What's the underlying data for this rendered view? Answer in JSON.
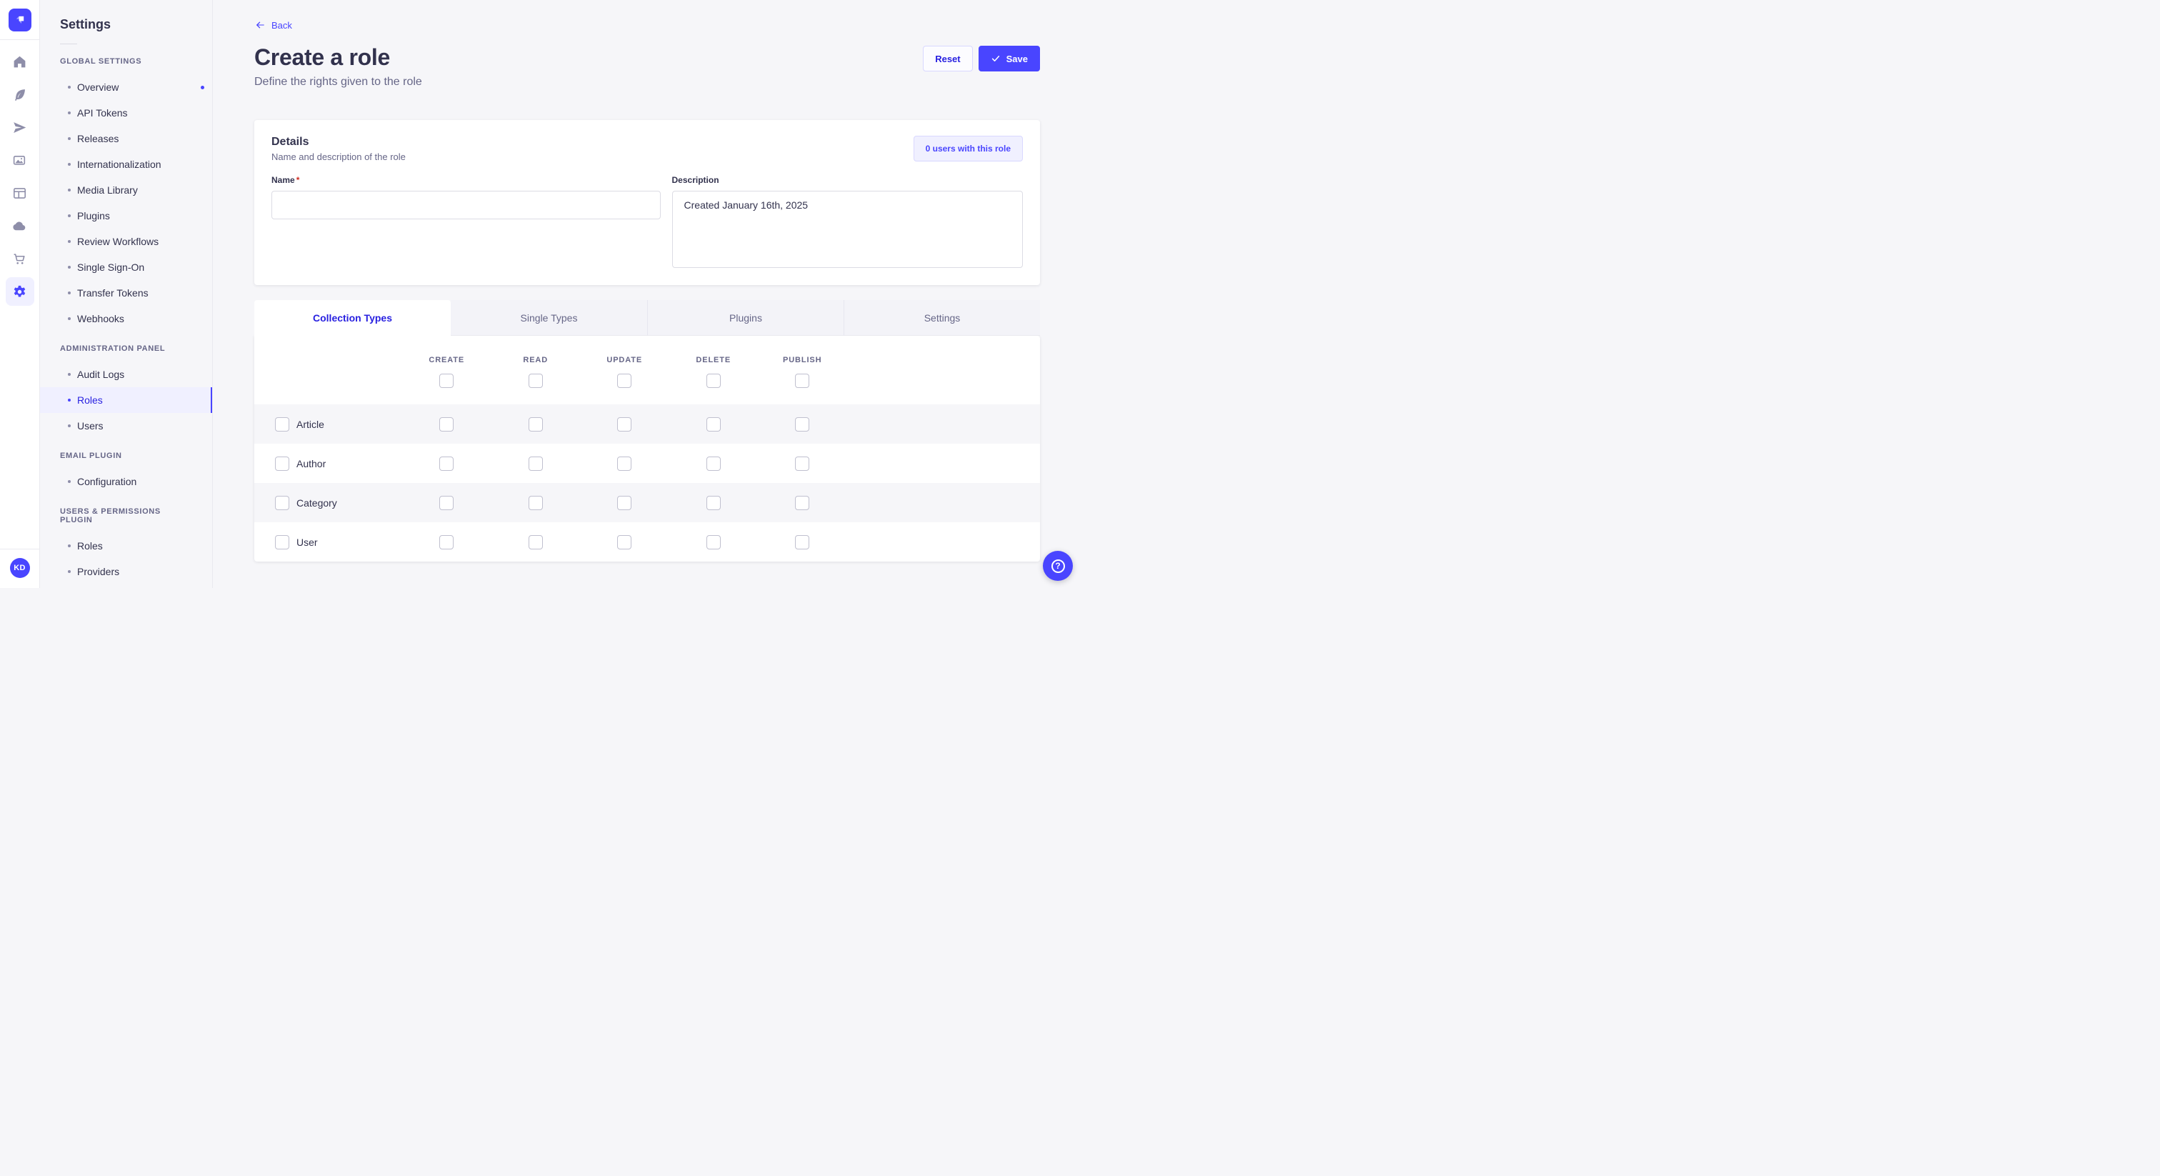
{
  "rail": {
    "icons": [
      {
        "name": "home-icon"
      },
      {
        "name": "feather-icon"
      },
      {
        "name": "paper-plane-icon"
      },
      {
        "name": "media-library-icon"
      },
      {
        "name": "content-type-builder-icon"
      },
      {
        "name": "cloud-icon"
      },
      {
        "name": "marketplace-cart-icon"
      },
      {
        "name": "settings-gear-icon",
        "active": true
      }
    ],
    "avatar_initials": "KD"
  },
  "sidebar": {
    "title": "Settings",
    "sections": [
      {
        "label": "GLOBAL SETTINGS",
        "items": [
          {
            "label": "Overview",
            "notification": true
          },
          {
            "label": "API Tokens"
          },
          {
            "label": "Releases"
          },
          {
            "label": "Internationalization"
          },
          {
            "label": "Media Library"
          },
          {
            "label": "Plugins"
          },
          {
            "label": "Review Workflows"
          },
          {
            "label": "Single Sign-On"
          },
          {
            "label": "Transfer Tokens"
          },
          {
            "label": "Webhooks"
          }
        ]
      },
      {
        "label": "ADMINISTRATION PANEL",
        "items": [
          {
            "label": "Audit Logs"
          },
          {
            "label": "Roles",
            "selected": true
          },
          {
            "label": "Users"
          }
        ]
      },
      {
        "label": "EMAIL PLUGIN",
        "items": [
          {
            "label": "Configuration"
          }
        ]
      },
      {
        "label": "USERS & PERMISSIONS PLUGIN",
        "items": [
          {
            "label": "Roles"
          },
          {
            "label": "Providers"
          }
        ]
      }
    ]
  },
  "header": {
    "back_label": "Back",
    "title": "Create a role",
    "subtitle": "Define the rights given to the role",
    "reset_label": "Reset",
    "save_label": "Save"
  },
  "details": {
    "title": "Details",
    "subtitle": "Name and description of the role",
    "users_button_label": "0 users with this role",
    "name_label": "Name",
    "required_mark": "*",
    "name_value": "",
    "description_label": "Description",
    "description_value": "Created January 16th, 2025"
  },
  "tabs": [
    {
      "label": "Collection Types",
      "active": true
    },
    {
      "label": "Single Types"
    },
    {
      "label": "Plugins"
    },
    {
      "label": "Settings"
    }
  ],
  "permissions_table": {
    "columns": [
      "CREATE",
      "READ",
      "UPDATE",
      "DELETE",
      "PUBLISH"
    ],
    "rows": [
      {
        "label": "Article"
      },
      {
        "label": "Author"
      },
      {
        "label": "Category"
      },
      {
        "label": "User"
      }
    ],
    "checkbox_state": "unchecked"
  },
  "colors": {
    "primary": "#4945ff",
    "primary_dark": "#271fe0",
    "selected_bg": "#f0f0ff",
    "page_bg": "#f6f6f9",
    "text_dark": "#32324d",
    "text_muted": "#666687",
    "border": "#eaeaef",
    "danger": "#d02b20"
  },
  "fab": {
    "icon": "question-mark"
  }
}
